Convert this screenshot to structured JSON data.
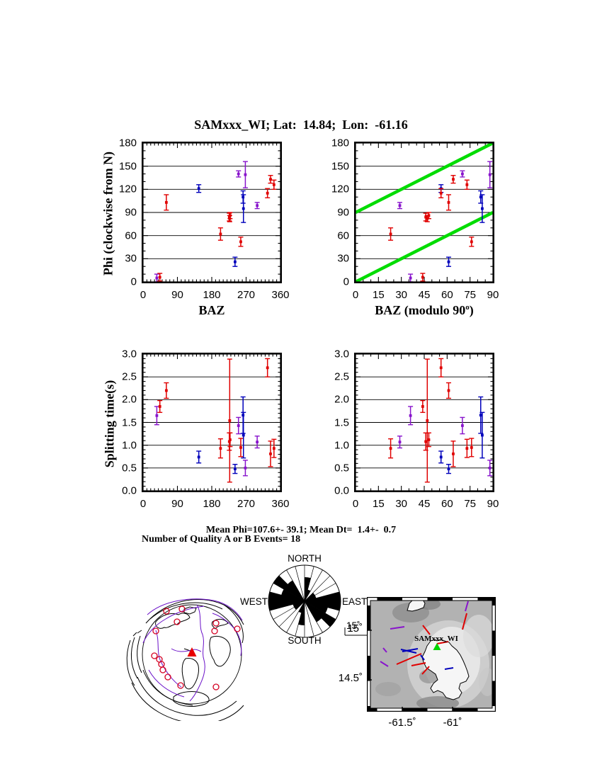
{
  "title": "SAMxxx_WI; Lat:  14.84;  Lon:  -61.16",
  "stats": {
    "line1": "Mean Phi=107.6+- 39.1; Mean Dt=  1.4+-  0.7",
    "line2": "Number of Quality A or B Events= 18"
  },
  "colors": {
    "red": "#e00000",
    "blue": "#0000bb",
    "purple": "#8814cc",
    "green": "#00dc00",
    "station_green": "#00d400"
  },
  "chart_data": {
    "type": "scatter",
    "events": [
      {
        "baz": 36,
        "phi": 5,
        "dphi": 5,
        "dt": 1.65,
        "ddt": 0.2,
        "color": "purple"
      },
      {
        "baz": 44,
        "phi": 6,
        "dphi": 5,
        "dt": 1.85,
        "ddt": 0.13,
        "color": "red"
      },
      {
        "baz": 61,
        "phi": 103,
        "dphi": 10,
        "dt": 2.2,
        "ddt": 0.17,
        "color": "red"
      },
      {
        "baz": 146,
        "phi": 121,
        "dphi": 5,
        "dt": 0.74,
        "ddt": 0.13,
        "color": "blue"
      },
      {
        "baz": 203,
        "phi": 62,
        "dphi": 8,
        "dt": 0.93,
        "ddt": 0.21,
        "color": "red"
      },
      {
        "baz": 226,
        "phi": 84,
        "dphi": 5,
        "dt": 1.08,
        "ddt": 0.19,
        "color": "red"
      },
      {
        "baz": 227,
        "phi": 82,
        "dphi": 4,
        "dt": 1.54,
        "ddt": 1.35,
        "color": "red"
      },
      {
        "baz": 228,
        "phi": 86,
        "dphi": 4,
        "dt": 1.12,
        "ddt": 0.15,
        "color": "red"
      },
      {
        "baz": 241,
        "phi": 26,
        "dphi": 6,
        "dt": 0.48,
        "ddt": 0.1,
        "color": "blue"
      },
      {
        "baz": 250,
        "phi": 140,
        "dphi": 4,
        "dt": 1.43,
        "ddt": 0.18,
        "color": "purple"
      },
      {
        "baz": 256,
        "phi": 52,
        "dphi": 6,
        "dt": 0.95,
        "ddt": 0.2,
        "color": "red"
      },
      {
        "baz": 262,
        "phi": 110,
        "dphi": 8,
        "dt": 1.66,
        "ddt": 0.4,
        "color": "blue"
      },
      {
        "baz": 263,
        "phi": 95,
        "dphi": 18,
        "dt": 1.22,
        "ddt": 0.5,
        "color": "blue"
      },
      {
        "baz": 268,
        "phi": 139,
        "dphi": 17,
        "dt": 0.5,
        "ddt": 0.17,
        "color": "purple"
      },
      {
        "baz": 299,
        "phi": 99,
        "dphi": 4,
        "dt": 1.07,
        "ddt": 0.13,
        "color": "purple"
      },
      {
        "baz": 326,
        "phi": 115,
        "dphi": 6,
        "dt": 2.7,
        "ddt": 0.2,
        "color": "red"
      },
      {
        "baz": 334,
        "phi": 133,
        "dphi": 5,
        "dt": 0.81,
        "ddt": 0.28,
        "color": "red"
      },
      {
        "baz": 343,
        "phi": 126,
        "dphi": 6,
        "dt": 0.93,
        "ddt": 0.2,
        "color": "red"
      }
    ],
    "panels": [
      {
        "id": "phi-vs-baz",
        "xfield": "baz",
        "yfield": "phi",
        "efield": "dphi",
        "xlim": [
          0,
          360
        ],
        "ylim": [
          0,
          180
        ],
        "xticks": [
          0,
          90,
          180,
          270,
          360
        ],
        "yticks": [
          0,
          30,
          60,
          90,
          120,
          150,
          180
        ],
        "xtick_labels": [
          "0",
          "90",
          "180",
          "270",
          "360"
        ],
        "ytick_labels": [
          "0",
          "30",
          "60",
          "90",
          "120",
          "150",
          "180"
        ],
        "xminor": 10,
        "yminor": 10
      },
      {
        "id": "phi-vs-bazmod",
        "xfield": "baz_mod90",
        "yfield": "phi",
        "efield": "dphi",
        "xlim": [
          0,
          90
        ],
        "ylim": [
          0,
          180
        ],
        "xticks": [
          0,
          15,
          30,
          45,
          60,
          75,
          90
        ],
        "yticks": [
          0,
          30,
          60,
          90,
          120,
          150,
          180
        ],
        "xtick_labels": [
          "0",
          "15",
          "30",
          "45",
          "60",
          "75",
          "90"
        ],
        "ytick_labels": [
          "0",
          "30",
          "60",
          "90",
          "120",
          "150",
          "180"
        ],
        "xminor": 5,
        "yminor": 10,
        "green_lines": [
          {
            "x1": 0,
            "y1": 90,
            "x2": 90,
            "y2": 180
          },
          {
            "x1": 0,
            "y1": 0,
            "x2": 90,
            "y2": 90
          }
        ]
      },
      {
        "id": "dt-vs-baz",
        "xfield": "baz",
        "yfield": "dt",
        "efield": "ddt",
        "xlim": [
          0,
          360
        ],
        "ylim": [
          0,
          3
        ],
        "xticks": [
          0,
          90,
          180,
          270,
          360
        ],
        "yticks": [
          0,
          0.5,
          1,
          1.5,
          2,
          2.5,
          3
        ],
        "xtick_labels": [
          "0",
          "90",
          "180",
          "270",
          "360"
        ],
        "ytick_labels": [
          "0.0",
          "0.5",
          "1.0",
          "1.5",
          "2.0",
          "2.5",
          "3.0"
        ],
        "xminor": 10,
        "yminor": 0.1
      },
      {
        "id": "dt-vs-bazmod",
        "xfield": "baz_mod90",
        "yfield": "dt",
        "efield": "ddt",
        "xlim": [
          0,
          90
        ],
        "ylim": [
          0,
          3
        ],
        "xticks": [
          0,
          15,
          30,
          45,
          60,
          75,
          90
        ],
        "yticks": [
          0,
          0.5,
          1,
          1.5,
          2,
          2.5,
          3
        ],
        "xtick_labels": [
          "0",
          "15",
          "30",
          "45",
          "60",
          "75",
          "90"
        ],
        "ytick_labels": [
          "0.0",
          "0.5",
          "1.0",
          "1.5",
          "2.0",
          "2.5",
          "3.0"
        ],
        "xminor": 5,
        "yminor": 0.1
      }
    ],
    "axis_labels": {
      "phi": "Phi (clockwise from N)",
      "baz": "BAZ",
      "bazmod_main": "BAZ (modulo 90",
      "bazmod_sup": "o",
      "bazmod_end": ")",
      "dt": "Splitting time(s)"
    },
    "rose": {
      "bin_deg": 15,
      "counts_0_180": [
        2,
        1,
        0,
        1,
        1,
        3,
        3,
        2,
        3,
        2,
        0,
        0
      ],
      "max_count": 3,
      "labels": {
        "north": "NORTH",
        "south": "SOUTH",
        "east": "EAST",
        "west": "WEST"
      },
      "scale_label": "15˚"
    },
    "globe": {
      "event_circles": [
        [
          85,
          25
        ],
        [
          107,
          22
        ],
        [
          100,
          40
        ],
        [
          70,
          53
        ],
        [
          155,
          42
        ],
        [
          153,
          53
        ],
        [
          185,
          50
        ],
        [
          68,
          88
        ],
        [
          75,
          93
        ],
        [
          78,
          100
        ],
        [
          80,
          108
        ],
        [
          87,
          118
        ],
        [
          105,
          130
        ],
        [
          155,
          132
        ]
      ],
      "station_triangle": {
        "x": 121,
        "y": 83
      }
    },
    "map": {
      "station_label": "SAMxxx_WI",
      "xtick_labels": [
        "-61.5˚",
        "-61˚"
      ],
      "ytick_labels": [
        "15˚",
        "14.5˚"
      ],
      "segments": [
        {
          "x1": 143,
          "y1": 6,
          "x2": 139,
          "y2": 20,
          "color": "purple"
        },
        {
          "x1": 141,
          "y1": 23,
          "x2": 135,
          "y2": 46,
          "color": "red"
        },
        {
          "x1": 79,
          "y1": 40,
          "x2": 89,
          "y2": 53,
          "color": "red"
        },
        {
          "x1": 33,
          "y1": 45,
          "x2": 53,
          "y2": 42,
          "color": "purple"
        },
        {
          "x1": 50,
          "y1": 77,
          "x2": 72,
          "y2": 73,
          "color": "blue"
        },
        {
          "x1": 48,
          "y1": 74,
          "x2": 70,
          "y2": 79,
          "color": "blue"
        },
        {
          "x1": 23,
          "y1": 72,
          "x2": 28,
          "y2": 78,
          "color": "purple"
        },
        {
          "x1": 19,
          "y1": 91,
          "x2": 30,
          "y2": 98,
          "color": "purple"
        },
        {
          "x1": 42,
          "y1": 95,
          "x2": 77,
          "y2": 80,
          "color": "red"
        },
        {
          "x1": 63,
          "y1": 97,
          "x2": 83,
          "y2": 93,
          "color": "red"
        },
        {
          "x1": 78,
          "y1": 109,
          "x2": 88,
          "y2": 98,
          "color": "red"
        },
        {
          "x1": 110,
          "y1": 102,
          "x2": 122,
          "y2": 100,
          "color": "blue"
        },
        {
          "x1": 99,
          "y1": 66,
          "x2": 115,
          "y2": 63,
          "color": "red"
        },
        {
          "x1": 76,
          "y1": 82,
          "x2": 81,
          "y2": 89,
          "color": "blue"
        }
      ]
    }
  }
}
